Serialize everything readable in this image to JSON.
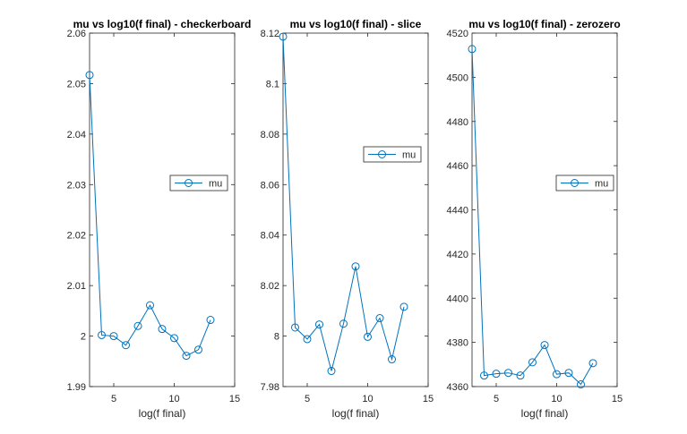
{
  "colors": {
    "series": "#0072BD",
    "axis": "#262626",
    "background": "#ffffff"
  },
  "chart_data": [
    {
      "type": "line",
      "title": "mu vs log10(f final) - checkerboard",
      "xlabel": "log(f final)",
      "ylabel": "",
      "xlim": [
        3,
        15
      ],
      "ylim": [
        1.99,
        2.06
      ],
      "xticks": [
        5,
        10,
        15
      ],
      "yticks": [
        1.99,
        2,
        2.01,
        2.02,
        2.03,
        2.04,
        2.05,
        2.06
      ],
      "ytick_labels": [
        "1.99",
        "2",
        "2.01",
        "2.02",
        "2.03",
        "2.04",
        "2.05",
        "2.06"
      ],
      "legend_placement": "right",
      "series": [
        {
          "name": "mu",
          "x": [
            3,
            4,
            5,
            6,
            7,
            8,
            9,
            10,
            11,
            12,
            13
          ],
          "y": [
            2.0517,
            2.0002,
            2.0,
            1.9982,
            2.002,
            2.0061,
            2.0014,
            1.9996,
            1.9961,
            1.9973,
            2.0032
          ]
        }
      ]
    },
    {
      "type": "line",
      "title": "mu vs log10(f final) - slice",
      "xlabel": "log(f final)",
      "ylabel": "",
      "xlim": [
        3,
        15
      ],
      "ylim": [
        7.98,
        8.12
      ],
      "xticks": [
        5,
        10,
        15
      ],
      "yticks": [
        7.98,
        8,
        8.02,
        8.04,
        8.06,
        8.08,
        8.1,
        8.12
      ],
      "ytick_labels": [
        "7.98",
        "8",
        "8.02",
        "8.04",
        "8.06",
        "8.08",
        "8.1",
        "8.12"
      ],
      "legend_placement": "top-right",
      "series": [
        {
          "name": "mu",
          "x": [
            3,
            4,
            5,
            6,
            7,
            8,
            9,
            10,
            11,
            12,
            13
          ],
          "y": [
            8.1186,
            8.0034,
            7.9988,
            8.0046,
            7.9862,
            8.0049,
            8.0276,
            7.9997,
            8.0071,
            7.9908,
            8.0116
          ]
        }
      ]
    },
    {
      "type": "line",
      "title": "mu vs log10(f final) - zerozero",
      "xlabel": "log(f final)",
      "ylabel": "",
      "xlim": [
        3,
        15
      ],
      "ylim": [
        4360,
        4520
      ],
      "xticks": [
        5,
        10,
        15
      ],
      "yticks": [
        4360,
        4380,
        4400,
        4420,
        4440,
        4460,
        4480,
        4500,
        4520
      ],
      "ytick_labels": [
        "4360",
        "4380",
        "4400",
        "4420",
        "4440",
        "4460",
        "4480",
        "4500",
        "4520"
      ],
      "legend_placement": "right",
      "series": [
        {
          "name": "mu",
          "x": [
            3,
            4,
            5,
            6,
            7,
            8,
            9,
            10,
            11,
            12,
            13
          ],
          "y": [
            4512.8,
            4365.0,
            4365.8,
            4366.2,
            4365.0,
            4371.0,
            4378.8,
            4365.6,
            4366.2,
            4361.0,
            4370.6
          ]
        }
      ]
    }
  ]
}
